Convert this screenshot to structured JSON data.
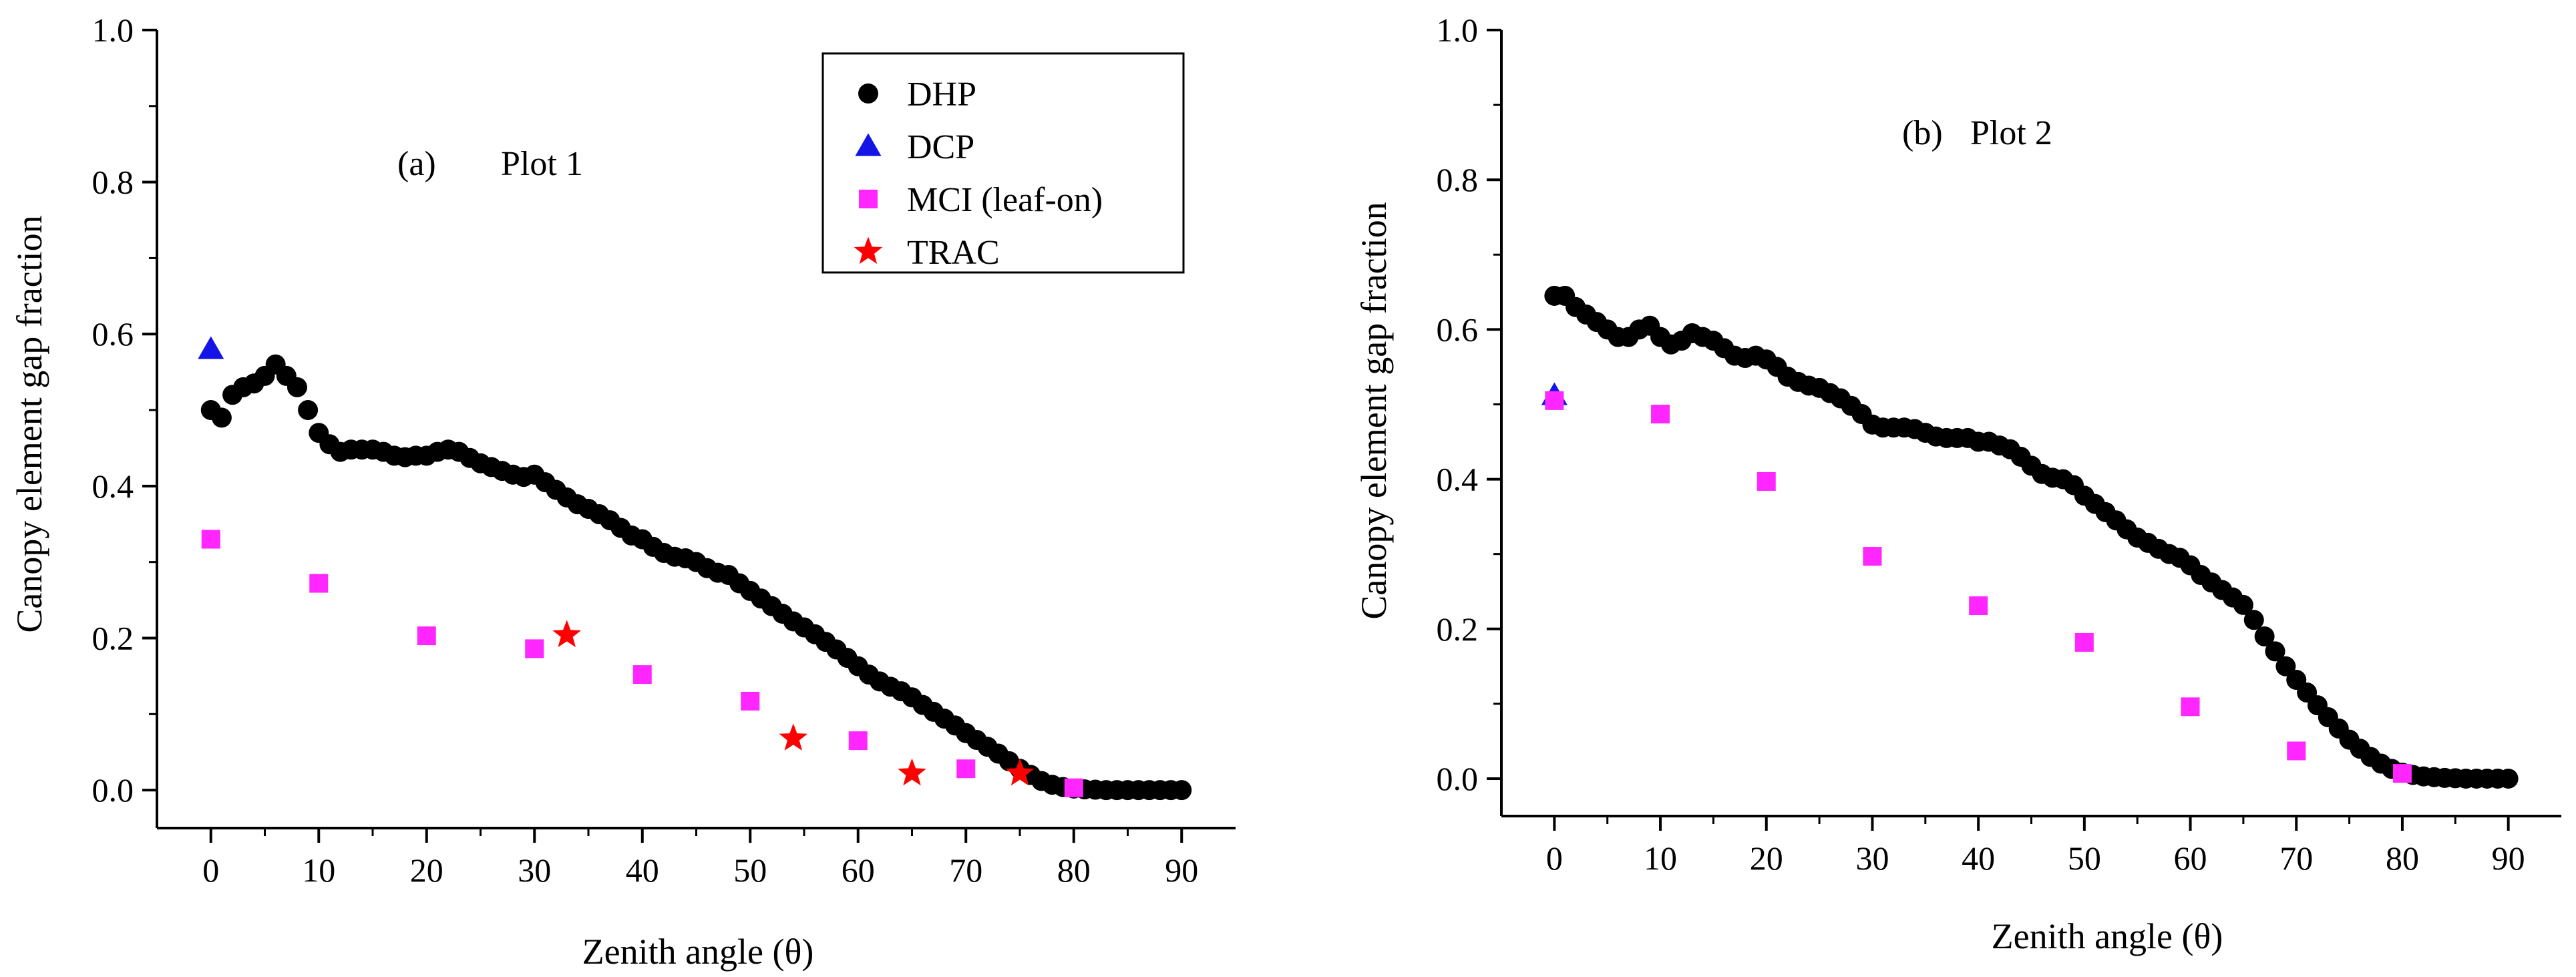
{
  "chart_data": [
    {
      "type": "scatter",
      "panel": "a",
      "annotation": "(a)",
      "title": "Plot 1",
      "xlabel": "Zenith angle (θ)",
      "ylabel": "Canopy element gap fraction",
      "xlim": [
        -5,
        95
      ],
      "ylim": [
        -0.05,
        1.0
      ],
      "xticks": [
        0,
        10,
        20,
        30,
        40,
        50,
        60,
        70,
        80,
        90
      ],
      "yticks": [
        0.0,
        0.2,
        0.4,
        0.6,
        0.8,
        1.0
      ],
      "xtick_labels": [
        "0",
        "10",
        "20",
        "30",
        "40",
        "50",
        "60",
        "70",
        "80",
        "90"
      ],
      "ytick_labels": [
        "0.0",
        "0.2",
        "0.4",
        "0.6",
        "0.8",
        "1.0"
      ],
      "legend_position": "top-right",
      "series": [
        {
          "name": "DHP",
          "marker": "circle",
          "color": "#000000",
          "x": [
            0,
            1,
            2,
            3,
            4,
            5,
            6,
            7,
            8,
            9,
            10,
            11,
            12,
            13,
            14,
            15,
            16,
            17,
            18,
            19,
            20,
            21,
            22,
            23,
            24,
            25,
            26,
            27,
            28,
            29,
            30,
            31,
            32,
            33,
            34,
            35,
            36,
            37,
            38,
            39,
            40,
            41,
            42,
            43,
            44,
            45,
            46,
            47,
            48,
            49,
            50,
            51,
            52,
            53,
            54,
            55,
            56,
            57,
            58,
            59,
            60,
            61,
            62,
            63,
            64,
            65,
            66,
            67,
            68,
            69,
            70,
            71,
            72,
            73,
            74,
            75,
            76,
            77,
            78,
            79,
            80,
            81,
            82,
            83,
            84,
            85,
            86,
            87,
            88,
            89,
            90
          ],
          "y": [
            0.5,
            0.49,
            0.52,
            0.53,
            0.535,
            0.545,
            0.56,
            0.545,
            0.53,
            0.5,
            0.47,
            0.455,
            0.445,
            0.448,
            0.448,
            0.448,
            0.445,
            0.44,
            0.438,
            0.44,
            0.44,
            0.445,
            0.448,
            0.445,
            0.437,
            0.43,
            0.425,
            0.42,
            0.415,
            0.412,
            0.415,
            0.405,
            0.395,
            0.385,
            0.376,
            0.37,
            0.363,
            0.355,
            0.345,
            0.335,
            0.33,
            0.32,
            0.312,
            0.307,
            0.305,
            0.3,
            0.292,
            0.286,
            0.283,
            0.272,
            0.262,
            0.252,
            0.242,
            0.232,
            0.222,
            0.214,
            0.205,
            0.195,
            0.185,
            0.174,
            0.163,
            0.152,
            0.143,
            0.136,
            0.13,
            0.122,
            0.112,
            0.103,
            0.094,
            0.085,
            0.075,
            0.066,
            0.057,
            0.048,
            0.038,
            0.028,
            0.02,
            0.012,
            0.007,
            0.004,
            0.002,
            0.001,
            0.0005,
            0.0,
            0.0,
            0.0,
            0.0,
            0.0,
            0.0,
            0.0,
            0.0
          ]
        },
        {
          "name": "DCP",
          "marker": "triangle",
          "color": "#1414e6",
          "x": [
            0
          ],
          "y": [
            0.58
          ]
        },
        {
          "name": "MCI (leaf-on)",
          "marker": "square",
          "color": "#ff26ff",
          "x": [
            0,
            10,
            20,
            30,
            40,
            50,
            60,
            70,
            80
          ],
          "y": [
            0.33,
            0.272,
            0.203,
            0.186,
            0.152,
            0.117,
            0.065,
            0.028,
            0.003
          ]
        },
        {
          "name": "TRAC",
          "marker": "star",
          "color": "#ff0000",
          "x": [
            33,
            54,
            65,
            75
          ],
          "y": [
            0.204,
            0.068,
            0.022,
            0.022
          ]
        }
      ]
    },
    {
      "type": "scatter",
      "panel": "b",
      "annotation": "(b)",
      "title": "Plot 2",
      "xlabel": "Zenith angle (θ)",
      "ylabel": "Canopy element gap fraction",
      "xlim": [
        -5,
        95
      ],
      "ylim": [
        -0.05,
        1.0
      ],
      "xticks": [
        0,
        10,
        20,
        30,
        40,
        50,
        60,
        70,
        80,
        90
      ],
      "yticks": [
        0.0,
        0.2,
        0.4,
        0.6,
        0.8,
        1.0
      ],
      "xtick_labels": [
        "0",
        "10",
        "20",
        "30",
        "40",
        "50",
        "60",
        "70",
        "80",
        "90"
      ],
      "ytick_labels": [
        "0.0",
        "0.2",
        "0.4",
        "0.6",
        "0.8",
        "1.0"
      ],
      "series": [
        {
          "name": "DHP",
          "marker": "circle",
          "color": "#000000",
          "x": [
            0,
            1,
            2,
            3,
            4,
            5,
            6,
            7,
            8,
            9,
            10,
            11,
            12,
            13,
            14,
            15,
            16,
            17,
            18,
            19,
            20,
            21,
            22,
            23,
            24,
            25,
            26,
            27,
            28,
            29,
            30,
            31,
            32,
            33,
            34,
            35,
            36,
            37,
            38,
            39,
            40,
            41,
            42,
            43,
            44,
            45,
            46,
            47,
            48,
            49,
            50,
            51,
            52,
            53,
            54,
            55,
            56,
            57,
            58,
            59,
            60,
            61,
            62,
            63,
            64,
            65,
            66,
            67,
            68,
            69,
            70,
            71,
            72,
            73,
            74,
            75,
            76,
            77,
            78,
            79,
            80,
            81,
            82,
            83,
            84,
            85,
            86,
            87,
            88,
            89,
            90
          ],
          "y": [
            0.645,
            0.645,
            0.63,
            0.62,
            0.61,
            0.6,
            0.59,
            0.59,
            0.6,
            0.605,
            0.59,
            0.58,
            0.585,
            0.595,
            0.59,
            0.585,
            0.575,
            0.565,
            0.562,
            0.565,
            0.56,
            0.55,
            0.537,
            0.53,
            0.525,
            0.522,
            0.515,
            0.508,
            0.498,
            0.487,
            0.473,
            0.469,
            0.469,
            0.469,
            0.467,
            0.462,
            0.457,
            0.455,
            0.455,
            0.455,
            0.45,
            0.45,
            0.445,
            0.44,
            0.43,
            0.418,
            0.407,
            0.402,
            0.4,
            0.392,
            0.378,
            0.367,
            0.356,
            0.345,
            0.333,
            0.322,
            0.315,
            0.307,
            0.3,
            0.295,
            0.285,
            0.272,
            0.262,
            0.252,
            0.242,
            0.232,
            0.212,
            0.19,
            0.17,
            0.15,
            0.132,
            0.115,
            0.098,
            0.082,
            0.067,
            0.052,
            0.04,
            0.029,
            0.02,
            0.013,
            0.008,
            0.005,
            0.003,
            0.002,
            0.001,
            0.0005,
            0.0,
            0.0,
            0.0,
            0.0,
            0.0
          ]
        },
        {
          "name": "DCP",
          "marker": "triangle",
          "color": "#1414e6",
          "x": [
            0
          ],
          "y": [
            0.512
          ]
        },
        {
          "name": "MCI (leaf-on)",
          "marker": "square",
          "color": "#ff26ff",
          "x": [
            0,
            10,
            20,
            30,
            40,
            50,
            60,
            70,
            80
          ],
          "y": [
            0.505,
            0.487,
            0.397,
            0.297,
            0.231,
            0.182,
            0.096,
            0.037,
            0.007
          ]
        }
      ]
    }
  ]
}
